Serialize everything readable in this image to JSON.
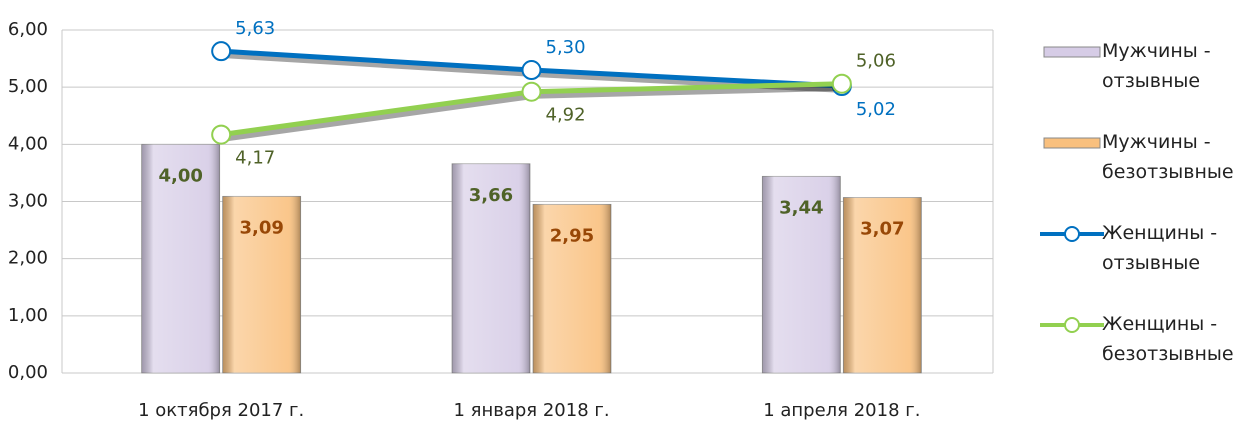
{
  "chart_data": {
    "type": "bar",
    "categories": [
      "1 октября 2017 г.",
      "1 января 2018 г.",
      "1 апреля 2018 г."
    ],
    "series": [
      {
        "name": "Мужчины - отзывные",
        "type": "bar",
        "color": "#d6cce6",
        "label_color": "#4f6228",
        "values": [
          4.0,
          3.66,
          3.44
        ],
        "value_labels": [
          "4,00",
          "3,66",
          "3,44"
        ]
      },
      {
        "name": "Мужчины - безотзывные",
        "type": "bar",
        "color": "#f9c07e",
        "label_color": "#984807",
        "values": [
          3.09,
          2.95,
          3.07
        ],
        "value_labels": [
          "3,09",
          "2,95",
          "3,07"
        ]
      },
      {
        "name": "Женщины - отзывные",
        "type": "line",
        "color": "#0070c0",
        "label_color": "#0070c0",
        "values": [
          5.63,
          5.3,
          5.02
        ],
        "value_labels": [
          "5,63",
          "5,30",
          "5,02"
        ]
      },
      {
        "name": "Женщины - безотзывные",
        "type": "line",
        "color": "#92d050",
        "label_color": "#4f6228",
        "values": [
          4.17,
          4.92,
          5.06
        ],
        "value_labels": [
          "4,17",
          "4,92",
          "5,06"
        ]
      }
    ],
    "ylim": [
      0,
      6
    ],
    "yticks": [
      {
        "value": 0,
        "label": "0,00"
      },
      {
        "value": 1,
        "label": "1,00"
      },
      {
        "value": 2,
        "label": "2,00"
      },
      {
        "value": 3,
        "label": "3,00"
      },
      {
        "value": 4,
        "label": "4,00"
      },
      {
        "value": 5,
        "label": "5,00"
      },
      {
        "value": 6,
        "label": "6,00"
      }
    ],
    "grid": true,
    "legend": "right"
  }
}
